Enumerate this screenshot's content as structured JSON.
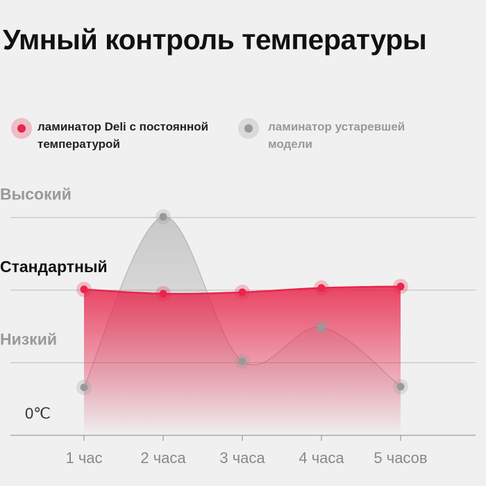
{
  "chart_data": {
    "type": "line",
    "title": "Умный контроль температуры",
    "categories": [
      "1 час",
      "2 часа",
      "3 часа",
      "4 часа",
      "5 часов"
    ],
    "series": [
      {
        "name": "ламинатор Deli с постоянной температурой",
        "color": "#e8254a",
        "values": [
          2.01,
          1.95,
          1.97,
          2.03,
          2.05
        ]
      },
      {
        "name": "ламинатор устаревшей модели",
        "color": "#999999",
        "values": [
          0.66,
          3.01,
          1.02,
          1.49,
          0.67
        ]
      }
    ],
    "ylim": [
      0,
      3.5
    ],
    "yticks": [
      {
        "value": 0,
        "label": "0℃"
      },
      {
        "value": 1,
        "label": "Низкий"
      },
      {
        "value": 2,
        "label": "Стандартный"
      },
      {
        "value": 3,
        "label": "Высокий"
      }
    ],
    "grid": true
  }
}
